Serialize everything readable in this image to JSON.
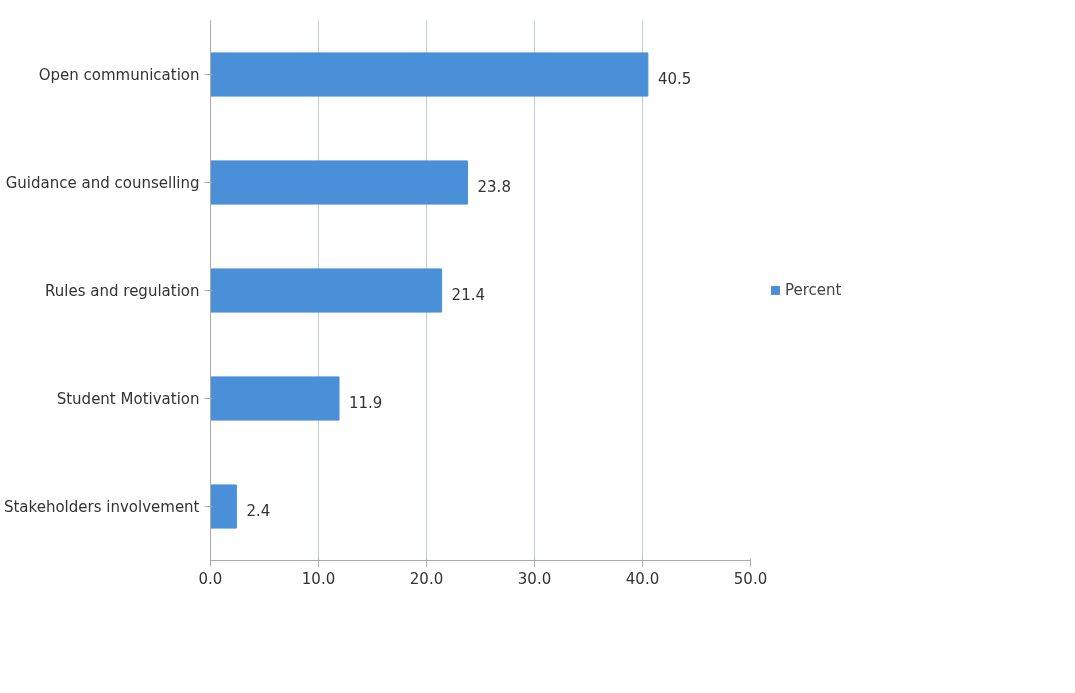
{
  "chart_data": {
    "type": "bar",
    "orientation": "horizontal",
    "categories": [
      "Open communication",
      "Guidance and counselling",
      "Rules and regulation",
      "Student Motivation",
      "Stakeholders involvement"
    ],
    "series": [
      {
        "name": "Percent",
        "color": "#4a90d9",
        "values": [
          40.5,
          23.8,
          21.4,
          11.9,
          2.4
        ]
      }
    ],
    "xlim": [
      0,
      50
    ],
    "xticks": [
      {
        "value": 0,
        "label": "0.0"
      },
      {
        "value": 10,
        "label": "10.0"
      },
      {
        "value": 20,
        "label": "20.0"
      },
      {
        "value": 30,
        "label": "30.0"
      },
      {
        "value": 40,
        "label": "40.0"
      },
      {
        "value": 50,
        "label": "50.0"
      }
    ],
    "data_labels": true,
    "grid": "x",
    "legend": "right"
  }
}
